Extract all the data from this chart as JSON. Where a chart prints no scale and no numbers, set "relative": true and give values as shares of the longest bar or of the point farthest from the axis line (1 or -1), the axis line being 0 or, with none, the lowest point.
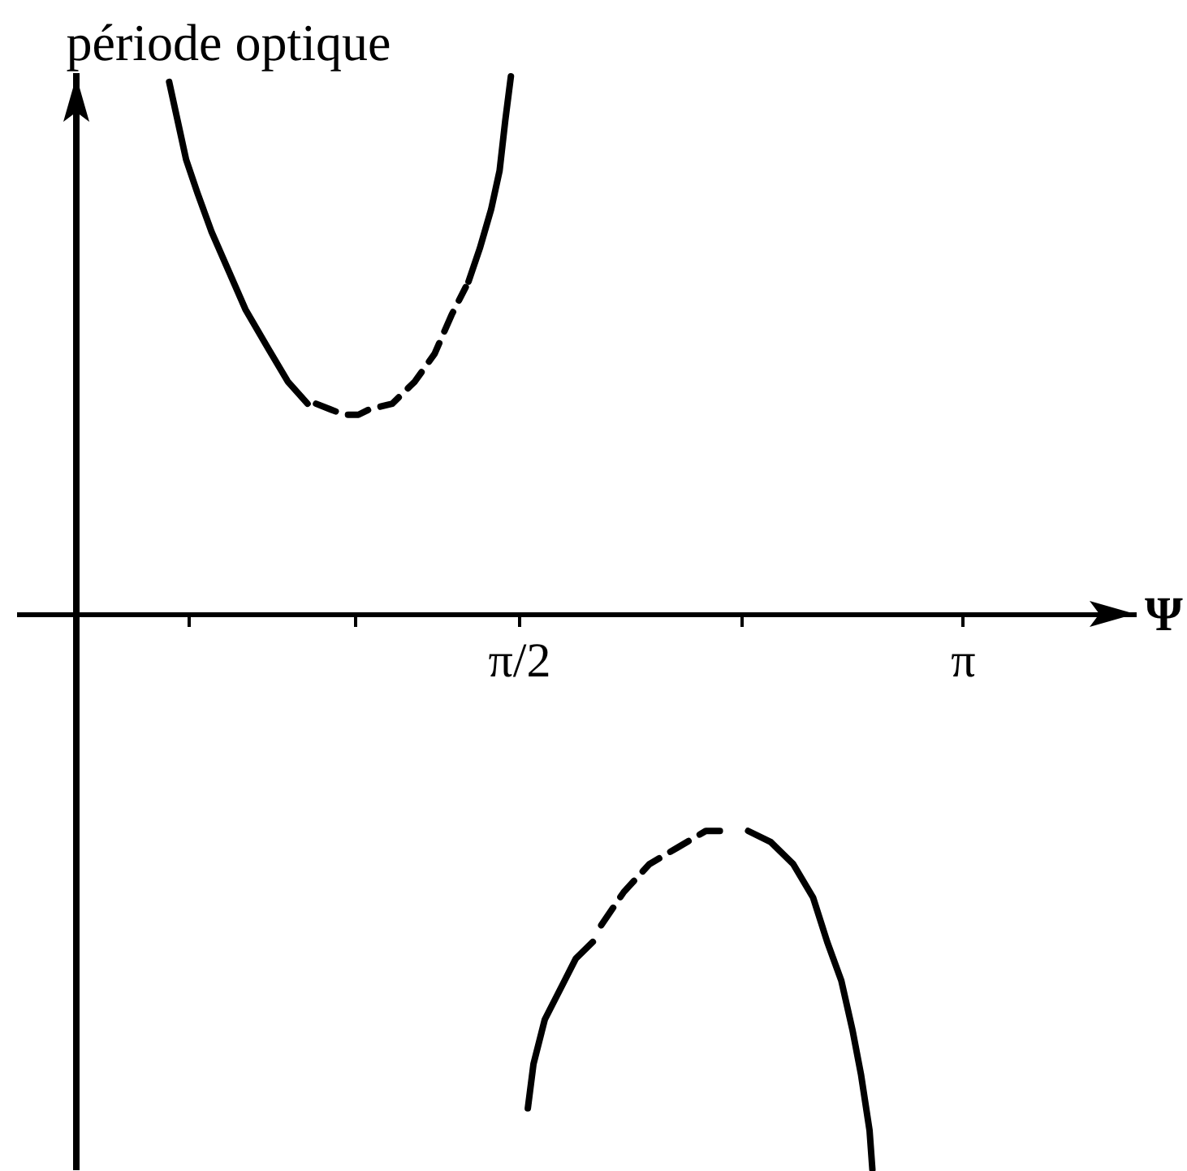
{
  "chart_data": {
    "type": "line",
    "relative": true,
    "xlabel": "Ψ",
    "ylabel": "période optique",
    "xlim": [
      -0.2,
      3.75
    ],
    "xticks": [
      {
        "value": 0.4,
        "label": null
      },
      {
        "value": 0.99,
        "label": null
      },
      {
        "value": 1.5708,
        "label": "π/2"
      },
      {
        "value": 2.36,
        "label": null
      },
      {
        "value": 3.1416,
        "label": "π"
      }
    ],
    "series": [
      {
        "color": "#000000",
        "line_style": "solid",
        "x": [
          0.33,
          0.36,
          0.39,
          0.43,
          0.48,
          0.54,
          0.6,
          0.68,
          0.75,
          0.82
        ],
        "values": [
          0.96,
          0.89,
          0.82,
          0.76,
          0.69,
          0.62,
          0.55,
          0.48,
          0.42,
          0.38
        ]
      },
      {
        "color": "#000000",
        "line_style": "dashed",
        "x": [
          0.85,
          0.9,
          0.95,
          1.0,
          1.04,
          1.12,
          1.2,
          1.27,
          1.33,
          1.38
        ],
        "values": [
          0.38,
          0.37,
          0.36,
          0.36,
          0.37,
          0.38,
          0.42,
          0.47,
          0.54,
          0.59
        ]
      },
      {
        "color": "#000000",
        "line_style": "solid",
        "x": [
          1.39,
          1.43,
          1.47,
          1.5,
          1.52,
          1.54
        ],
        "values": [
          0.6,
          0.66,
          0.73,
          0.8,
          0.89,
          0.97
        ]
      },
      {
        "color": "#000000",
        "line_style": "solid",
        "x": [
          1.6,
          1.62,
          1.66,
          1.73,
          1.77,
          1.83
        ],
        "values": [
          -0.89,
          -0.81,
          -0.73,
          -0.66,
          -0.62,
          -0.59
        ]
      },
      {
        "color": "#000000",
        "line_style": "dashed",
        "x": [
          1.86,
          1.94,
          2.03,
          2.13,
          2.23,
          2.32
        ],
        "values": [
          -0.56,
          -0.5,
          -0.45,
          -0.42,
          -0.39,
          -0.39
        ]
      },
      {
        "color": "#000000",
        "line_style": "solid",
        "x": [
          2.38,
          2.46,
          2.54,
          2.61,
          2.66,
          2.71,
          2.75,
          2.78,
          2.81,
          2.82
        ],
        "values": [
          -0.39,
          -0.41,
          -0.45,
          -0.51,
          -0.59,
          -0.66,
          -0.75,
          -0.83,
          -0.93,
          -1
        ]
      }
    ]
  }
}
